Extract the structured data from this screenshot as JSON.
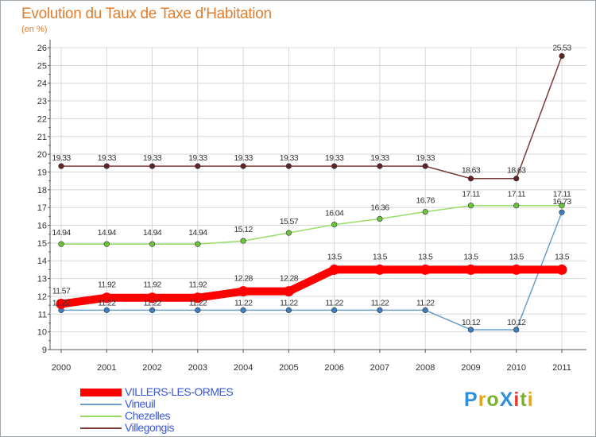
{
  "page": {
    "title": "Evolution du Taux de Taxe d'Habitation",
    "subtitle": "(en %)",
    "logo": "ProXiti"
  },
  "chart_data": {
    "type": "line",
    "title": "Evolution du Taux de Taxe d'Habitation",
    "ylabel": "(en %)",
    "xlabel": "",
    "categories": [
      "2000",
      "2001",
      "2002",
      "2003",
      "2004",
      "2005",
      "2006",
      "2007",
      "2008",
      "2009",
      "2010",
      "2011"
    ],
    "ylim": [
      9,
      26
    ],
    "yticks": [
      "9",
      "10",
      "11",
      "12",
      "13",
      "14",
      "15",
      "16",
      "17",
      "18",
      "19",
      "20",
      "21",
      "22",
      "23",
      "24",
      "25",
      "26"
    ],
    "grid": true,
    "legend_position": "bottom-left",
    "series": [
      {
        "name": "VILLERS-LES-ORMES",
        "color": "#ff0000",
        "dot_color": "#ff0000",
        "emphasis": true,
        "values": [
          11.57,
          11.92,
          11.92,
          11.92,
          12.28,
          12.28,
          13.5,
          13.5,
          13.5,
          13.5,
          13.5,
          13.5
        ],
        "labels": [
          "11.57",
          "11.92",
          "11.92",
          "11.92",
          "12.28",
          "12.28",
          "13.5",
          "13.5",
          "13.5",
          "13.5",
          "13.5",
          "13.5"
        ]
      },
      {
        "name": "Vineuil",
        "color": "#6c9ec9",
        "dot_color": "#3d7ec2",
        "values": [
          11.22,
          11.22,
          11.22,
          11.22,
          11.22,
          11.22,
          11.22,
          11.22,
          11.22,
          10.12,
          10.12,
          16.73
        ],
        "labels": [
          "11.22",
          "11.22",
          "11.22",
          "11.22",
          "11.22",
          "11.22",
          "11.22",
          "11.22",
          "11.22",
          "10.12",
          "10.12",
          "16.73"
        ]
      },
      {
        "name": "Chezelles",
        "color": "#99dd66",
        "dot_color": "#6cc43c",
        "values": [
          14.94,
          14.94,
          14.94,
          14.94,
          15.12,
          15.57,
          16.04,
          16.36,
          16.76,
          17.11,
          17.11,
          17.11
        ],
        "labels": [
          "14.94",
          "14.94",
          "14.94",
          "14.94",
          "15.12",
          "15.57",
          "16.04",
          "16.36",
          "16.76",
          "17.11",
          "17.11",
          "17.11"
        ]
      },
      {
        "name": "Villegongis",
        "color": "#7a3a3a",
        "dot_color": "#5e2424",
        "values": [
          19.33,
          19.33,
          19.33,
          19.33,
          19.33,
          19.33,
          19.33,
          19.33,
          19.33,
          18.63,
          18.63,
          25.53
        ],
        "labels": [
          "19.33",
          "19.33",
          "19.33",
          "19.33",
          "19.33",
          "19.33",
          "19.33",
          "19.33",
          "19.33",
          "18.63",
          "18.63",
          "25.53"
        ]
      }
    ]
  }
}
